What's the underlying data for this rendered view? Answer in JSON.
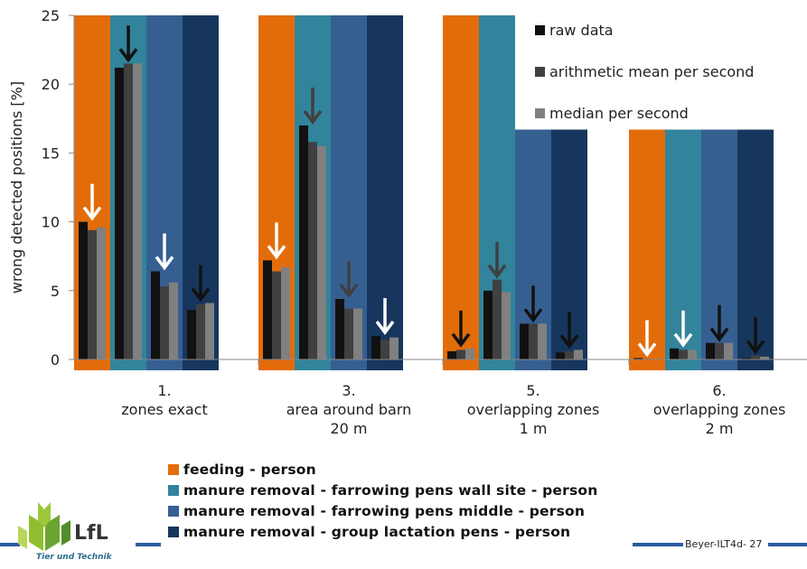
{
  "chart_data": {
    "type": "bar",
    "ylabel": "wrong detected positions [%]",
    "ylim": [
      0,
      25
    ],
    "yticks": [
      0,
      5,
      10,
      15,
      20,
      25
    ],
    "categories": [
      [
        "1.",
        "zones exact"
      ],
      [
        "3.",
        "area around barn",
        "20 m"
      ],
      [
        "5.",
        "overlapping zones",
        "1 m"
      ],
      [
        "6.",
        "overlapping zones",
        "2 m"
      ]
    ],
    "background_series": [
      {
        "name": "feeding - person",
        "color": "#E36C0A",
        "heights": [
          25,
          25,
          25,
          16.7
        ]
      },
      {
        "name": "manure removal - farrowing pens wall site - person",
        "color": "#31849B",
        "heights": [
          25,
          25,
          25,
          16.7
        ]
      },
      {
        "name": "manure removal - farrowing pens middle - person",
        "color": "#365F91",
        "heights": [
          25,
          25,
          16.7,
          16.7
        ]
      },
      {
        "name": "manure removal - group lactation pens - person",
        "color": "#17365D",
        "heights": [
          25,
          25,
          16.7,
          16.7
        ]
      }
    ],
    "series": [
      {
        "name": "raw data",
        "color": "#111111"
      },
      {
        "name": "arithmetic mean per second",
        "color": "#404040"
      },
      {
        "name": "median per second",
        "color": "#808080"
      }
    ],
    "values": [
      [
        [
          10.0,
          9.4,
          9.6
        ],
        [
          21.2,
          21.5,
          21.5
        ],
        [
          6.4,
          5.3,
          5.6
        ],
        [
          3.6,
          4.0,
          4.1
        ]
      ],
      [
        [
          7.2,
          6.4,
          6.7
        ],
        [
          17.0,
          15.8,
          15.5
        ],
        [
          4.4,
          3.7,
          3.7
        ],
        [
          1.7,
          1.4,
          1.6
        ]
      ],
      [
        [
          0.6,
          0.7,
          0.8
        ],
        [
          5.0,
          5.8,
          4.9
        ],
        [
          2.6,
          2.6,
          2.6
        ],
        [
          0.5,
          0.6,
          0.7
        ]
      ],
      [
        [
          0.1,
          0.0,
          0.0
        ],
        [
          0.8,
          0.7,
          0.7
        ],
        [
          1.2,
          1.2,
          1.2
        ],
        [
          0.1,
          0.3,
          0.2
        ]
      ]
    ],
    "arrows": [
      [
        {
          "at": 10.0,
          "color": "#ffffff"
        },
        {
          "at": 21.5,
          "color": "#111111"
        },
        {
          "at": 6.4,
          "color": "#ffffff"
        },
        {
          "at": 4.1,
          "color": "#111111"
        }
      ],
      [
        {
          "at": 7.2,
          "color": "#ffffff"
        },
        {
          "at": 17.0,
          "color": "#404040"
        },
        {
          "at": 4.4,
          "color": "#404040"
        },
        {
          "at": 1.7,
          "color": "#ffffff"
        }
      ],
      [
        {
          "at": 0.8,
          "color": "#111111"
        },
        {
          "at": 5.8,
          "color": "#404040"
        },
        {
          "at": 2.6,
          "color": "#111111"
        },
        {
          "at": 0.7,
          "color": "#111111"
        }
      ],
      [
        {
          "at": 0.1,
          "color": "#ffffff"
        },
        {
          "at": 0.8,
          "color": "#ffffff"
        },
        {
          "at": 1.2,
          "color": "#111111"
        },
        {
          "at": 0.3,
          "color": "#111111"
        }
      ]
    ],
    "legend_position": "top-right"
  },
  "footer": {
    "logo_text": "LfL",
    "logo_subtitle": "Tier und Technik",
    "reference": "Beyer-ILT4d- 27"
  }
}
